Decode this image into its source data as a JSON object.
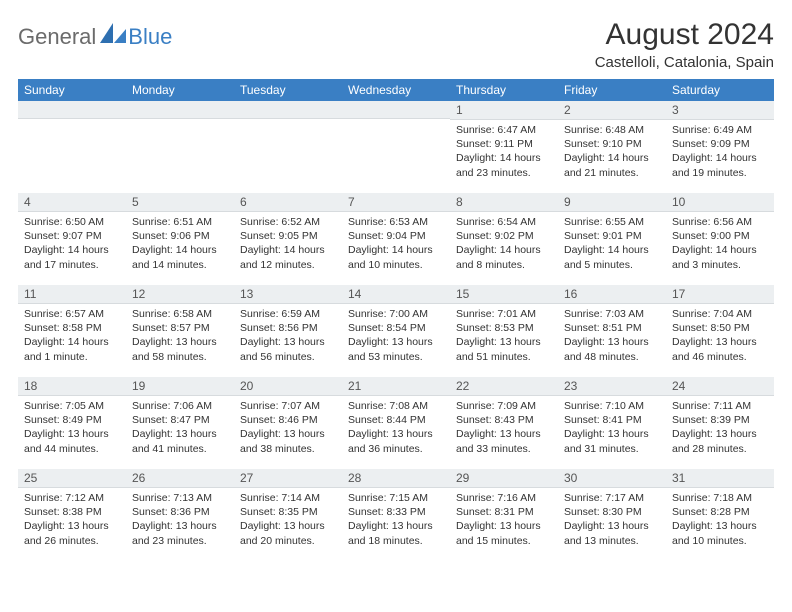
{
  "logo": {
    "general": "General",
    "blue": "Blue"
  },
  "header": {
    "title": "August 2024",
    "subtitle": "Castelloli, Catalonia, Spain"
  },
  "colors": {
    "header_bg": "#3a7fc4",
    "header_fg": "#ffffff",
    "daynum_bg": "#eceff1",
    "page_bg": "#ffffff",
    "text": "#333333",
    "logo_gray": "#6b6b6b",
    "logo_blue": "#3a7fc4"
  },
  "weekdays": [
    "Sunday",
    "Monday",
    "Tuesday",
    "Wednesday",
    "Thursday",
    "Friday",
    "Saturday"
  ],
  "weeks": [
    [
      null,
      null,
      null,
      null,
      {
        "n": "1",
        "sr": "Sunrise: 6:47 AM",
        "ss": "Sunset: 9:11 PM",
        "dl": "Daylight: 14 hours and 23 minutes."
      },
      {
        "n": "2",
        "sr": "Sunrise: 6:48 AM",
        "ss": "Sunset: 9:10 PM",
        "dl": "Daylight: 14 hours and 21 minutes."
      },
      {
        "n": "3",
        "sr": "Sunrise: 6:49 AM",
        "ss": "Sunset: 9:09 PM",
        "dl": "Daylight: 14 hours and 19 minutes."
      }
    ],
    [
      {
        "n": "4",
        "sr": "Sunrise: 6:50 AM",
        "ss": "Sunset: 9:07 PM",
        "dl": "Daylight: 14 hours and 17 minutes."
      },
      {
        "n": "5",
        "sr": "Sunrise: 6:51 AM",
        "ss": "Sunset: 9:06 PM",
        "dl": "Daylight: 14 hours and 14 minutes."
      },
      {
        "n": "6",
        "sr": "Sunrise: 6:52 AM",
        "ss": "Sunset: 9:05 PM",
        "dl": "Daylight: 14 hours and 12 minutes."
      },
      {
        "n": "7",
        "sr": "Sunrise: 6:53 AM",
        "ss": "Sunset: 9:04 PM",
        "dl": "Daylight: 14 hours and 10 minutes."
      },
      {
        "n": "8",
        "sr": "Sunrise: 6:54 AM",
        "ss": "Sunset: 9:02 PM",
        "dl": "Daylight: 14 hours and 8 minutes."
      },
      {
        "n": "9",
        "sr": "Sunrise: 6:55 AM",
        "ss": "Sunset: 9:01 PM",
        "dl": "Daylight: 14 hours and 5 minutes."
      },
      {
        "n": "10",
        "sr": "Sunrise: 6:56 AM",
        "ss": "Sunset: 9:00 PM",
        "dl": "Daylight: 14 hours and 3 minutes."
      }
    ],
    [
      {
        "n": "11",
        "sr": "Sunrise: 6:57 AM",
        "ss": "Sunset: 8:58 PM",
        "dl": "Daylight: 14 hours and 1 minute."
      },
      {
        "n": "12",
        "sr": "Sunrise: 6:58 AM",
        "ss": "Sunset: 8:57 PM",
        "dl": "Daylight: 13 hours and 58 minutes."
      },
      {
        "n": "13",
        "sr": "Sunrise: 6:59 AM",
        "ss": "Sunset: 8:56 PM",
        "dl": "Daylight: 13 hours and 56 minutes."
      },
      {
        "n": "14",
        "sr": "Sunrise: 7:00 AM",
        "ss": "Sunset: 8:54 PM",
        "dl": "Daylight: 13 hours and 53 minutes."
      },
      {
        "n": "15",
        "sr": "Sunrise: 7:01 AM",
        "ss": "Sunset: 8:53 PM",
        "dl": "Daylight: 13 hours and 51 minutes."
      },
      {
        "n": "16",
        "sr": "Sunrise: 7:03 AM",
        "ss": "Sunset: 8:51 PM",
        "dl": "Daylight: 13 hours and 48 minutes."
      },
      {
        "n": "17",
        "sr": "Sunrise: 7:04 AM",
        "ss": "Sunset: 8:50 PM",
        "dl": "Daylight: 13 hours and 46 minutes."
      }
    ],
    [
      {
        "n": "18",
        "sr": "Sunrise: 7:05 AM",
        "ss": "Sunset: 8:49 PM",
        "dl": "Daylight: 13 hours and 44 minutes."
      },
      {
        "n": "19",
        "sr": "Sunrise: 7:06 AM",
        "ss": "Sunset: 8:47 PM",
        "dl": "Daylight: 13 hours and 41 minutes."
      },
      {
        "n": "20",
        "sr": "Sunrise: 7:07 AM",
        "ss": "Sunset: 8:46 PM",
        "dl": "Daylight: 13 hours and 38 minutes."
      },
      {
        "n": "21",
        "sr": "Sunrise: 7:08 AM",
        "ss": "Sunset: 8:44 PM",
        "dl": "Daylight: 13 hours and 36 minutes."
      },
      {
        "n": "22",
        "sr": "Sunrise: 7:09 AM",
        "ss": "Sunset: 8:43 PM",
        "dl": "Daylight: 13 hours and 33 minutes."
      },
      {
        "n": "23",
        "sr": "Sunrise: 7:10 AM",
        "ss": "Sunset: 8:41 PM",
        "dl": "Daylight: 13 hours and 31 minutes."
      },
      {
        "n": "24",
        "sr": "Sunrise: 7:11 AM",
        "ss": "Sunset: 8:39 PM",
        "dl": "Daylight: 13 hours and 28 minutes."
      }
    ],
    [
      {
        "n": "25",
        "sr": "Sunrise: 7:12 AM",
        "ss": "Sunset: 8:38 PM",
        "dl": "Daylight: 13 hours and 26 minutes."
      },
      {
        "n": "26",
        "sr": "Sunrise: 7:13 AM",
        "ss": "Sunset: 8:36 PM",
        "dl": "Daylight: 13 hours and 23 minutes."
      },
      {
        "n": "27",
        "sr": "Sunrise: 7:14 AM",
        "ss": "Sunset: 8:35 PM",
        "dl": "Daylight: 13 hours and 20 minutes."
      },
      {
        "n": "28",
        "sr": "Sunrise: 7:15 AM",
        "ss": "Sunset: 8:33 PM",
        "dl": "Daylight: 13 hours and 18 minutes."
      },
      {
        "n": "29",
        "sr": "Sunrise: 7:16 AM",
        "ss": "Sunset: 8:31 PM",
        "dl": "Daylight: 13 hours and 15 minutes."
      },
      {
        "n": "30",
        "sr": "Sunrise: 7:17 AM",
        "ss": "Sunset: 8:30 PM",
        "dl": "Daylight: 13 hours and 13 minutes."
      },
      {
        "n": "31",
        "sr": "Sunrise: 7:18 AM",
        "ss": "Sunset: 8:28 PM",
        "dl": "Daylight: 13 hours and 10 minutes."
      }
    ]
  ]
}
